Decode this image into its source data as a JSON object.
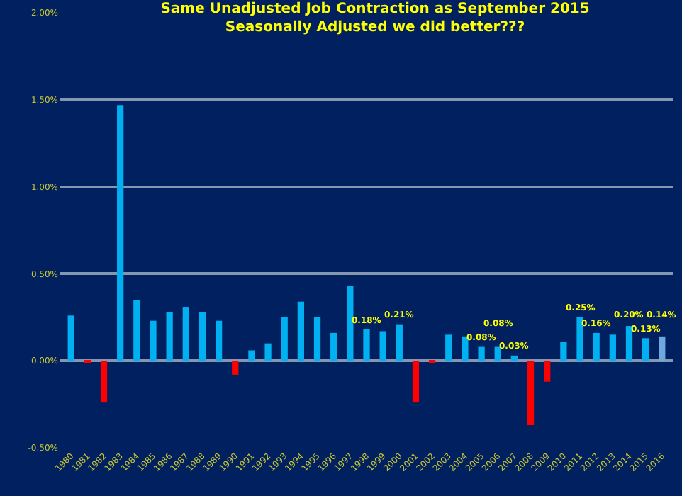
{
  "chart_data": {
    "type": "bar",
    "title": "Same Unadjusted Job Contraction as September 2015",
    "subtitle": "Seasonally Adjusted we did better???",
    "categories": [
      "1980",
      "1981",
      "1982",
      "1983",
      "1984",
      "1985",
      "1986",
      "1987",
      "1988",
      "1989",
      "1990",
      "1991",
      "1992",
      "1993",
      "1994",
      "1995",
      "1996",
      "1997",
      "1998",
      "1999",
      "2000",
      "2001",
      "2002",
      "2003",
      "2004",
      "2005",
      "2006",
      "2007",
      "2008",
      "2009",
      "2010",
      "2011",
      "2012",
      "2013",
      "2014",
      "2015",
      "2016"
    ],
    "values": [
      0.26,
      -0.01,
      -0.24,
      1.47,
      0.35,
      0.23,
      0.28,
      0.31,
      0.28,
      0.23,
      -0.08,
      0.06,
      0.1,
      0.25,
      0.34,
      0.25,
      0.16,
      0.43,
      0.18,
      0.17,
      0.21,
      -0.24,
      -0.01,
      0.15,
      0.14,
      0.08,
      0.08,
      0.03,
      -0.37,
      -0.12,
      0.11,
      0.25,
      0.16,
      0.15,
      0.2,
      0.13,
      0.14
    ],
    "value_labels": [
      null,
      null,
      null,
      null,
      null,
      null,
      null,
      null,
      null,
      null,
      null,
      null,
      null,
      null,
      null,
      null,
      null,
      null,
      "0.18%",
      null,
      "0.21%",
      null,
      null,
      null,
      null,
      "0.08%",
      "0.08%",
      "0.03%",
      null,
      null,
      null,
      "0.25%",
      "0.16%",
      null,
      "0.20%",
      "0.13%",
      "0.14%"
    ],
    "colors": [
      "#00b0f0",
      "#ff0000",
      "#ff0000",
      "#00b0f0",
      "#00b0f0",
      "#00b0f0",
      "#00b0f0",
      "#00b0f0",
      "#00b0f0",
      "#00b0f0",
      "#ff0000",
      "#00b0f0",
      "#00b0f0",
      "#00b0f0",
      "#00b0f0",
      "#00b0f0",
      "#00b0f0",
      "#00b0f0",
      "#00b0f0",
      "#00b0f0",
      "#00b0f0",
      "#ff0000",
      "#ff0000",
      "#00b0f0",
      "#00b0f0",
      "#00b0f0",
      "#00b0f0",
      "#00b0f0",
      "#ff0000",
      "#ff0000",
      "#00b0f0",
      "#00b0f0",
      "#00b0f0",
      "#00b0f0",
      "#00b0f0",
      "#00b0f0",
      "#6fa8dc"
    ],
    "ylim": [
      -0.5,
      2.0
    ],
    "yticks": [
      {
        "value": -0.5,
        "label": "-0.50%"
      },
      {
        "value": 0,
        "label": "0.00%"
      },
      {
        "value": 0.5,
        "label": "0.50%"
      },
      {
        "value": 1.0,
        "label": "1.00%"
      },
      {
        "value": 1.5,
        "label": "1.50%"
      },
      {
        "value": 2.0,
        "label": "2.00%"
      }
    ],
    "grid": "y"
  }
}
